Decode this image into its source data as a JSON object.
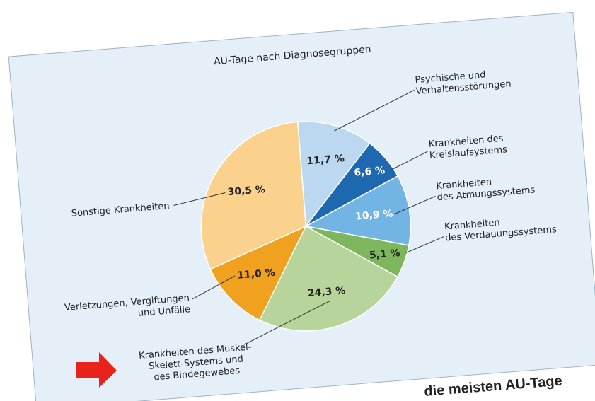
{
  "chart_data": {
    "type": "pie",
    "title": "AU-Tage nach Diagnosegruppen",
    "categories": [
      [
        "Psychische und",
        "Verhaltensstörungen"
      ],
      [
        "Krankheiten des",
        "Kreislaufsystems"
      ],
      [
        "Krankheiten",
        "des Atmungssystems"
      ],
      [
        "Krankheiten",
        "des Verdauungssystems"
      ],
      [
        "Krankheiten des Muskel-",
        "Skelett-Systems und",
        "des Bindegewebes"
      ],
      [
        "Verletzungen, Vergiftungen",
        "und Unfälle"
      ],
      [
        "Sonstige Krankheiten"
      ]
    ],
    "values": [
      11.7,
      6.6,
      10.9,
      5.1,
      24.3,
      11.0,
      30.5
    ],
    "value_labels": [
      "11,7 %",
      "6,6 %",
      "10,9 %",
      "5,1 %",
      "24,3 %",
      "11,0 %",
      "30,5 %"
    ],
    "colors": [
      "#bcd8f1",
      "#1e68b0",
      "#72b4e4",
      "#7db65c",
      "#b7d49b",
      "#f0a11f",
      "#fbd18e"
    ],
    "caption": "die meisten AU-Tage"
  }
}
